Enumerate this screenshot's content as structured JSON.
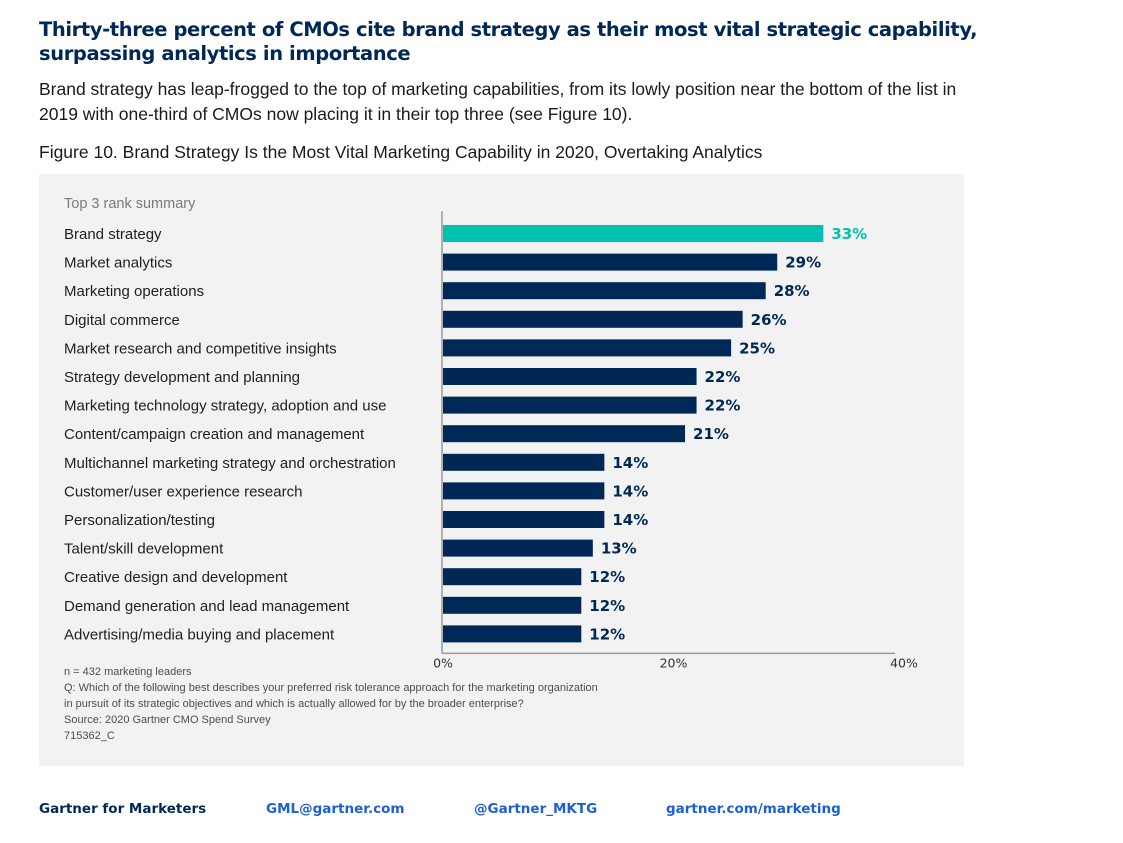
{
  "headline": "Thirty-three percent of CMOs cite brand strategy as their most vital strategic capability, surpassing analytics in importance",
  "intro": "Brand strategy has leap-frogged to the top of marketing capabilities, from its lowly position near the bottom of the list in 2019 with one-third of CMOs now placing it in their top three (see Figure 10).",
  "figure_title": "Figure 10. Brand Strategy Is the Most Vital Marketing Capability in 2020, Overtaking Analytics",
  "colors": {
    "highlight": "#00c2b0",
    "bar": "#002856",
    "axis": "#9a9a9a",
    "panel": "#f2f2f2"
  },
  "chart_data": {
    "type": "bar",
    "orientation": "horizontal",
    "title": "Figure 10. Brand Strategy Is the Most Vital Marketing Capability in 2020, Overtaking Analytics",
    "subtitle": "Top 3 rank summary",
    "xlabel": "",
    "ylabel": "",
    "xlim": [
      0,
      40
    ],
    "x_ticks": [
      "0%",
      "20%",
      "40%"
    ],
    "x_tick_values": [
      0,
      20,
      40
    ],
    "grid": false,
    "unit": "%",
    "highlight_category": "Brand strategy",
    "categories": [
      "Brand strategy",
      "Market analytics",
      "Marketing operations",
      "Digital commerce",
      "Market research and competitive insights",
      "Strategy development and planning",
      "Marketing technology strategy, adoption and use",
      "Content/campaign creation and management",
      "Multichannel marketing strategy and orchestration",
      "Customer/user experience research",
      "Personalization/testing",
      "Talent/skill development",
      "Creative design and development",
      "Demand generation and lead management",
      "Advertising/media buying and placement"
    ],
    "values": [
      33,
      29,
      28,
      26,
      25,
      22,
      22,
      21,
      14,
      14,
      14,
      13,
      12,
      12,
      12
    ],
    "data_labels": [
      "33%",
      "29%",
      "28%",
      "26%",
      "25%",
      "22%",
      "22%",
      "21%",
      "14%",
      "14%",
      "14%",
      "13%",
      "12%",
      "12%",
      "12%"
    ]
  },
  "notes": [
    "n = 432 marketing leaders",
    "Q: Which of the following best describes your preferred risk tolerance approach for the marketing organization",
    "in pursuit of its strategic objectives and which is actually allowed for by the broader enterprise?",
    "Source: 2020 Gartner CMO Spend Survey",
    "715362_C"
  ],
  "footer": {
    "brand": "Gartner for Marketers",
    "email": "GML@gartner.com",
    "twitter": "@Gartner_MKTG",
    "website": "gartner.com/marketing"
  }
}
